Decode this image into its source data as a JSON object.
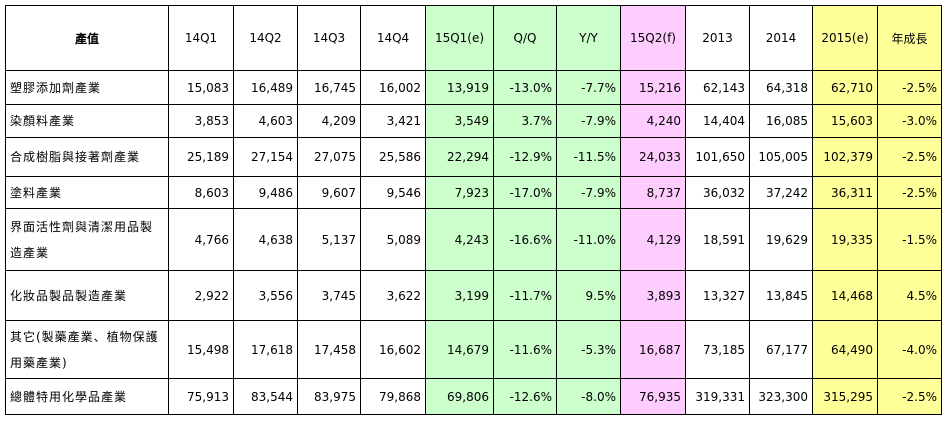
{
  "table": {
    "header": [
      "產值",
      "14Q1",
      "14Q2",
      "14Q3",
      "14Q4",
      "15Q1(e)",
      "Q/Q",
      "Y/Y",
      "15Q2(f)",
      "2013",
      "2014",
      "2015(e)",
      "年成長"
    ],
    "rows": [
      [
        "塑膠添加劑產業",
        "15,083",
        "16,489",
        "16,745",
        "16,002",
        "13,919",
        "-13.0%",
        "-7.7%",
        "15,216",
        "62,143",
        "64,318",
        "62,710",
        "-2.5%"
      ],
      [
        "染顏料產業",
        "3,853",
        "4,603",
        "4,209",
        "3,421",
        "3,549",
        "3.7%",
        "-7.9%",
        "4,240",
        "14,404",
        "16,085",
        "15,603",
        "-3.0%"
      ],
      [
        "合成樹脂與接著劑產業",
        "25,189",
        "27,154",
        "27,075",
        "25,586",
        "22,294",
        "-12.9%",
        "-11.5%",
        "24,033",
        "101,650",
        "105,005",
        "102,379",
        "-2.5%"
      ],
      [
        "塗料產業",
        "8,603",
        "9,486",
        "9,607",
        "9,546",
        "7,923",
        "-17.0%",
        "-7.9%",
        "8,737",
        "36,032",
        "37,242",
        "36,311",
        "-2.5%"
      ],
      [
        "界面活性劑與清潔用品製造產業",
        "4,766",
        "4,638",
        "5,137",
        "5,089",
        "4,243",
        "-16.6%",
        "-11.0%",
        "4,129",
        "18,591",
        "19,629",
        "19,335",
        "-1.5%"
      ],
      [
        "化妝品製品製造產業",
        "2,922",
        "3,556",
        "3,745",
        "3,622",
        "3,199",
        "-11.7%",
        "9.5%",
        "3,893",
        "13,327",
        "13,845",
        "14,468",
        "4.5%"
      ],
      [
        "其它(製藥產業、植物保護用藥產業)",
        "15,498",
        "17,618",
        "17,458",
        "16,602",
        "14,679",
        "-11.6%",
        "-5.3%",
        "16,687",
        "73,185",
        "67,177",
        "64,490",
        "-4.0%"
      ],
      [
        "總體特用化學品產業",
        "75,913",
        "83,544",
        "83,975",
        "79,868",
        "69,806",
        "-12.6%",
        "-8.0%",
        "76,935",
        "319,331",
        "323,300",
        "315,295",
        "-2.5%"
      ]
    ]
  }
}
